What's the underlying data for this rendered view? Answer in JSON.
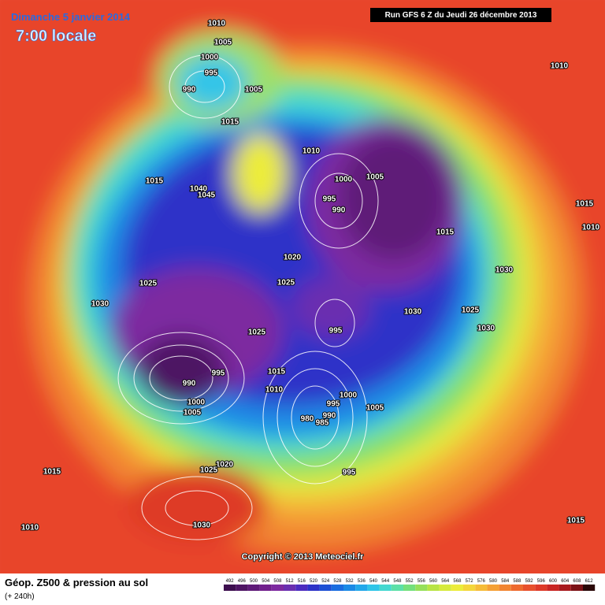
{
  "header": {
    "title": "Dimanche 5 janvier 2014",
    "subtitle": "7:00 locale",
    "run": "Run GFS 6 Z du Jeudi 26 décembre 2013"
  },
  "isobars": [
    "1010",
    "1005",
    "1000",
    "995",
    "990",
    "1005",
    "1015",
    "1010",
    "1000",
    "1005",
    "995",
    "990",
    "1015",
    "1015",
    "1040",
    "1045",
    "1020",
    "1025",
    "1025",
    "1030",
    "1030",
    "1025",
    "1030",
    "1030",
    "995",
    "1025",
    "1015",
    "1010",
    "995",
    "990",
    "1000",
    "1005",
    "1000",
    "995",
    "990",
    "980",
    "985",
    "1005",
    "995",
    "1020",
    "1025",
    "1015",
    "1010",
    "1030",
    "1015",
    "1010",
    "1015",
    "1010"
  ],
  "copyright": "Copyright © 2013 Meteociel.fr",
  "footer": {
    "caption": "Géop. Z500 & pression au sol",
    "lead": "(+ 240h)"
  },
  "legend": {
    "labels": [
      492,
      496,
      500,
      504,
      508,
      512,
      516,
      520,
      524,
      528,
      532,
      536,
      540,
      544,
      548,
      552,
      556,
      560,
      564,
      568,
      572,
      576,
      580,
      584,
      588,
      592,
      596,
      600,
      604,
      608,
      612
    ],
    "colors": [
      "#3d0f4f",
      "#4e1564",
      "#5e1a78",
      "#701e8c",
      "#7d2aa0",
      "#6a2fb0",
      "#4c2cc0",
      "#2d33c8",
      "#1c4fd4",
      "#1a6de0",
      "#1a8ae6",
      "#22a8ea",
      "#30c5e8",
      "#44d8d0",
      "#5ce0a8",
      "#74e07c",
      "#96e05a",
      "#b8e444",
      "#d6ea3c",
      "#ecec3a",
      "#f4d63a",
      "#f6bc38",
      "#f5a035",
      "#f28532",
      "#ee6a2f",
      "#e8502c",
      "#de3a28",
      "#c92624",
      "#a81a1e",
      "#7c1216",
      "#2a0808"
    ]
  }
}
